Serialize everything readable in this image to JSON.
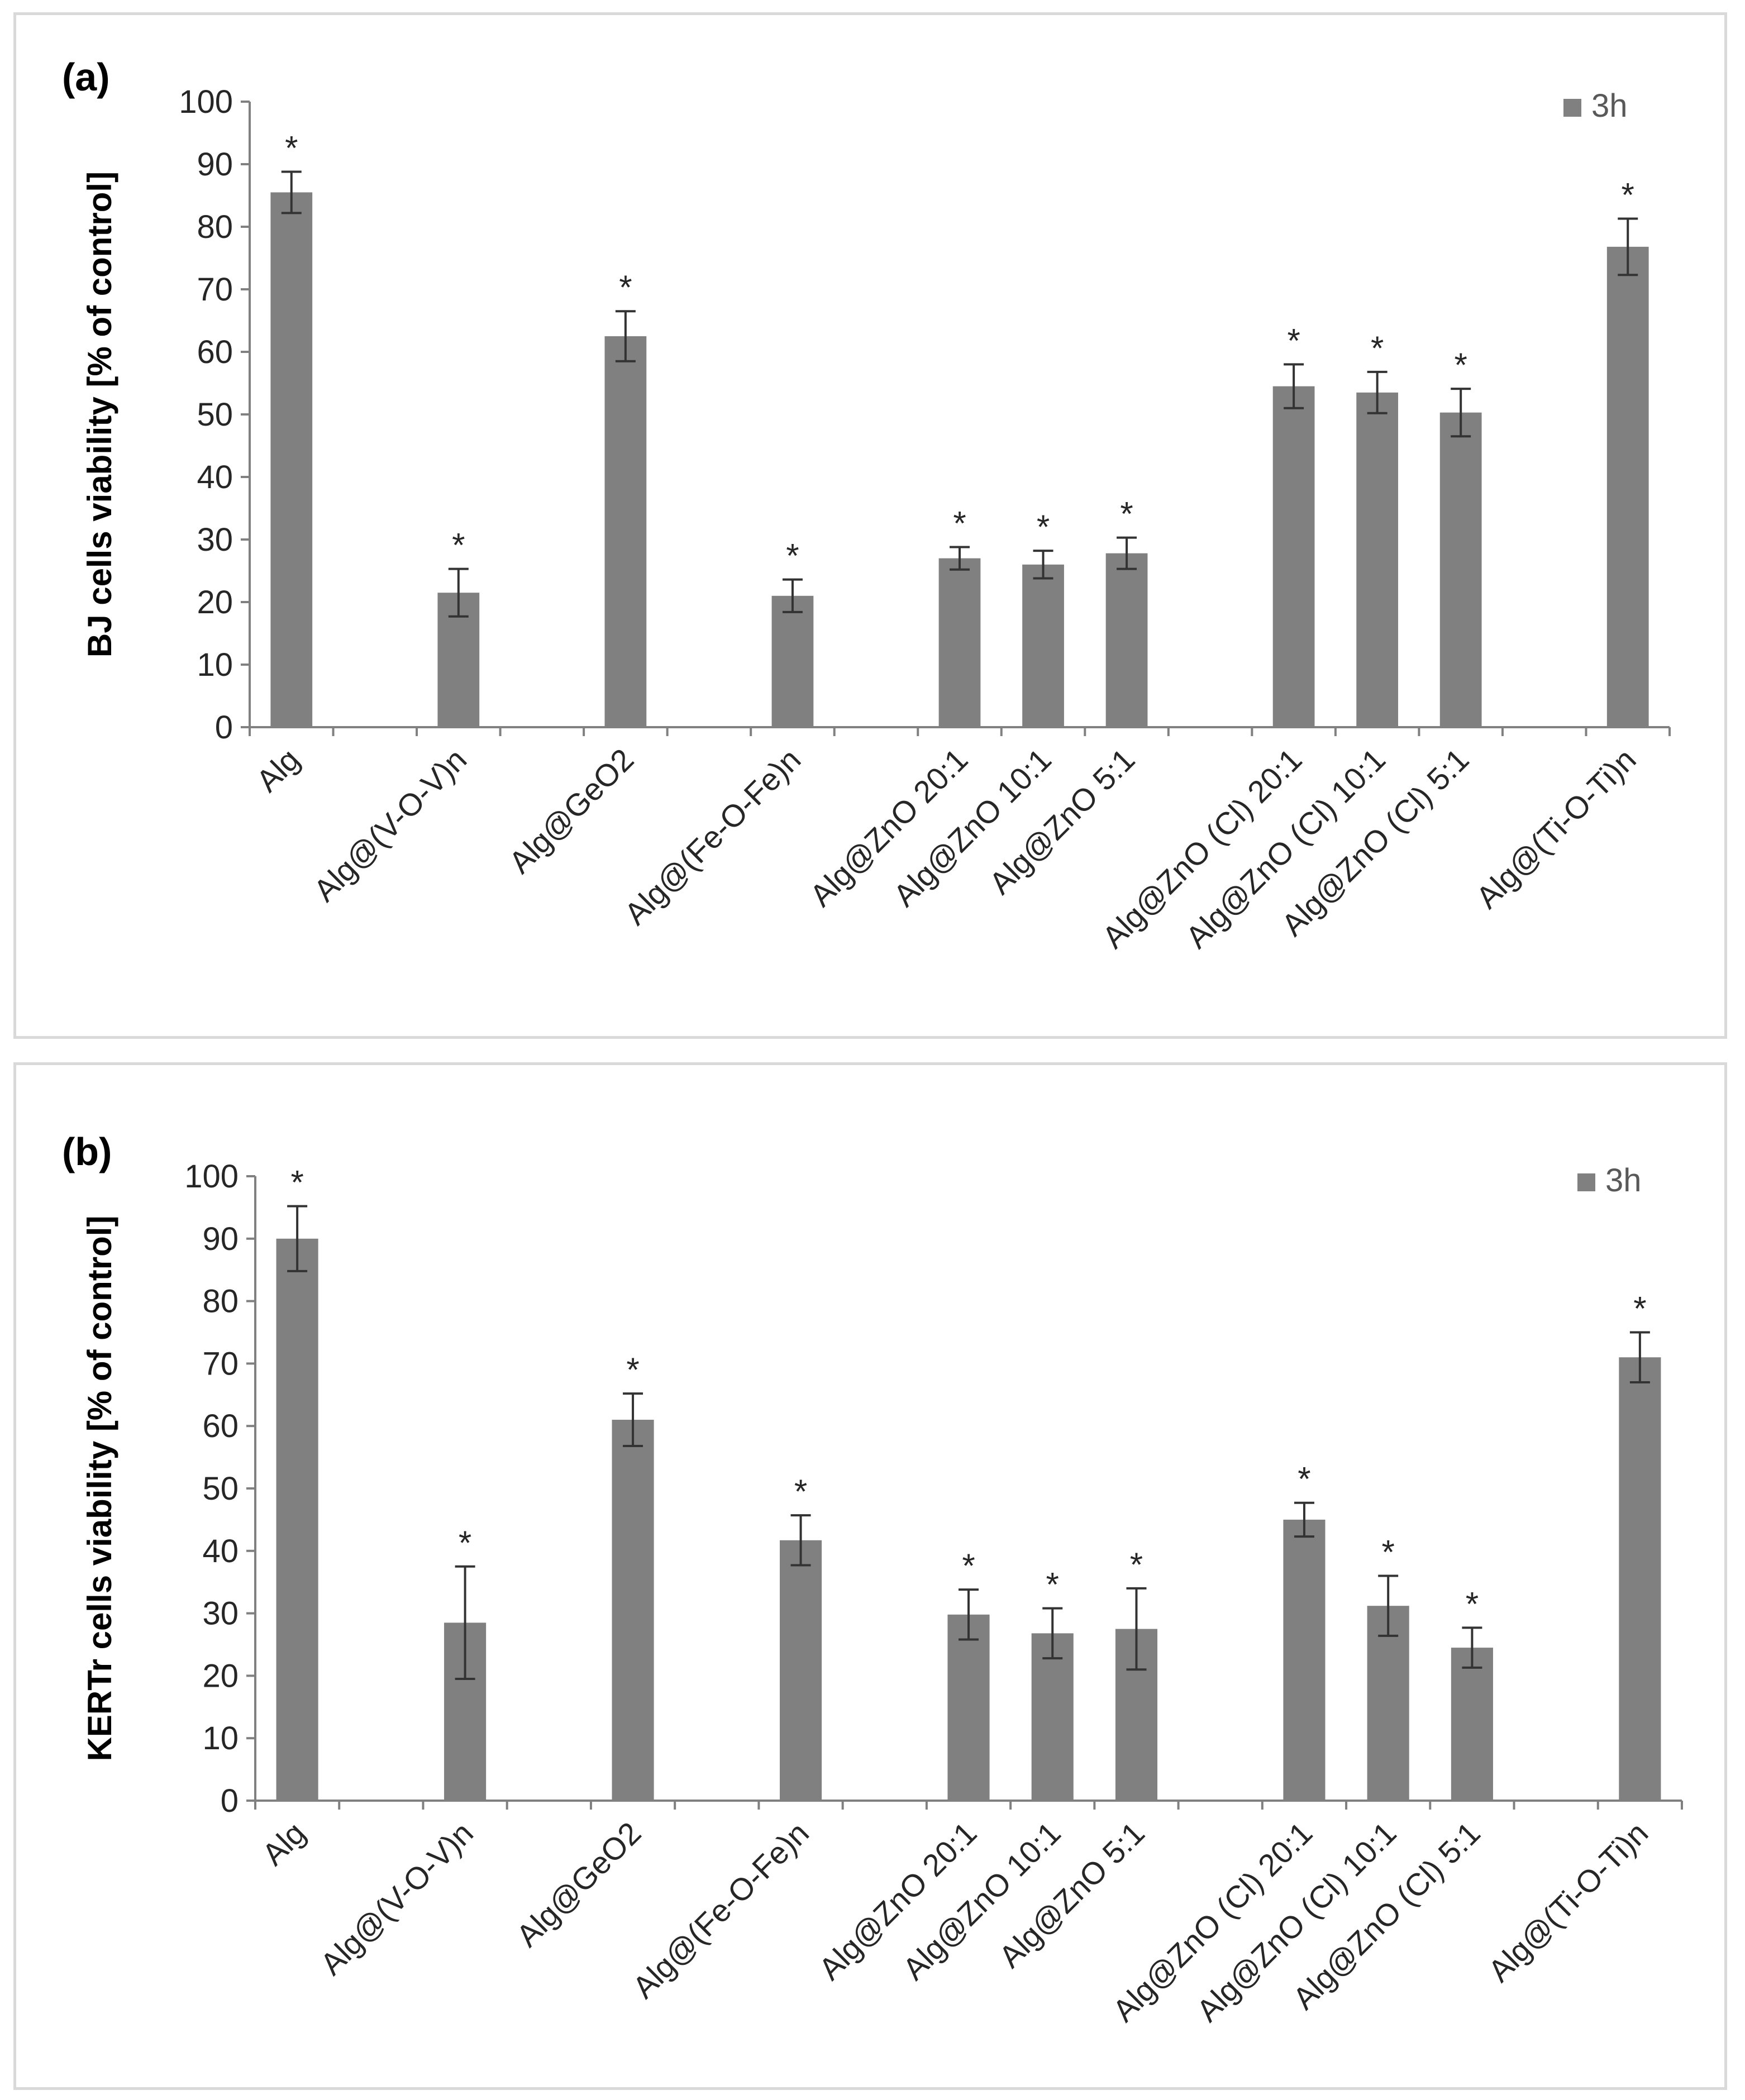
{
  "panels": [
    {
      "id": "a",
      "label": "(a)",
      "chart_data": {
        "type": "bar",
        "title": "",
        "xlabel": "",
        "ylabel": "BJ  cells viability  [% of control]",
        "ylim": [
          0,
          100
        ],
        "yticks": [
          0,
          10,
          20,
          30,
          40,
          50,
          60,
          70,
          80,
          90,
          100
        ],
        "legend": {
          "entries": [
            "3h"
          ],
          "position": "top-right"
        },
        "colors": {
          "bar": "#808080",
          "axis": "#808080",
          "error": "#333333"
        },
        "categories": [
          "Alg",
          "",
          "Alg@(V-O-V)n",
          "",
          "Alg@GeO2",
          "",
          "Alg@(Fe-O-Fe)n",
          "",
          "Alg@ZnO 20:1",
          "Alg@ZnO 10:1",
          "Alg@ZnO 5:1",
          "",
          "Alg@ZnO (Cl)  20:1",
          "Alg@ZnO (Cl) 10:1",
          "Alg@ZnO (Cl) 5:1",
          "",
          "Alg@(Ti-O-Ti)n"
        ],
        "series": [
          {
            "name": "3h",
            "values": [
              85.5,
              null,
              21.5,
              null,
              62.5,
              null,
              21,
              null,
              27,
              26,
              27.8,
              null,
              54.5,
              53.5,
              50.3,
              null,
              76.8
            ],
            "errors": [
              3.3,
              null,
              3.8,
              null,
              4.0,
              null,
              2.6,
              null,
              1.8,
              2.2,
              2.5,
              null,
              3.5,
              3.3,
              3.8,
              null,
              4.5
            ],
            "significance": [
              "*",
              null,
              "*",
              null,
              "*",
              null,
              "*",
              null,
              "*",
              "*",
              "*",
              null,
              "*",
              "*",
              "*",
              null,
              "*"
            ]
          }
        ]
      }
    },
    {
      "id": "b",
      "label": "(b)",
      "chart_data": {
        "type": "bar",
        "title": "",
        "xlabel": "",
        "ylabel": "KERTr cells viability [% of control]",
        "ylim": [
          0,
          100
        ],
        "yticks": [
          0,
          10,
          20,
          30,
          40,
          50,
          60,
          70,
          80,
          90,
          100
        ],
        "legend": {
          "entries": [
            "3h"
          ],
          "position": "top-right"
        },
        "colors": {
          "bar": "#808080",
          "axis": "#808080",
          "error": "#333333"
        },
        "categories": [
          "Alg",
          "",
          "Alg@(V-O-V)n",
          "",
          "Alg@GeO2",
          "",
          "Alg@(Fe-O-Fe)n",
          "",
          "Alg@ZnO 20:1",
          "Alg@ZnO 10:1",
          "Alg@ZnO 5:1",
          "",
          "Alg@ZnO (Cl)  20:1",
          "Alg@ZnO (Cl) 10:1",
          "Alg@ZnO (Cl) 5:1",
          "",
          "Alg@(Ti-O-Ti)n"
        ],
        "series": [
          {
            "name": "3h",
            "values": [
              90,
              null,
              28.5,
              null,
              61,
              null,
              41.7,
              null,
              29.8,
              26.8,
              27.5,
              null,
              45,
              31.2,
              24.5,
              null,
              71
            ],
            "errors": [
              5.2,
              null,
              9.0,
              null,
              4.2,
              null,
              4.0,
              null,
              4.0,
              4.0,
              6.5,
              null,
              2.7,
              4.8,
              3.2,
              null,
              4.0
            ],
            "significance": [
              "*",
              null,
              "*",
              null,
              "*",
              null,
              "*",
              null,
              "*",
              "*",
              "*",
              null,
              "*",
              "*",
              "*",
              null,
              "*"
            ]
          }
        ]
      }
    }
  ]
}
